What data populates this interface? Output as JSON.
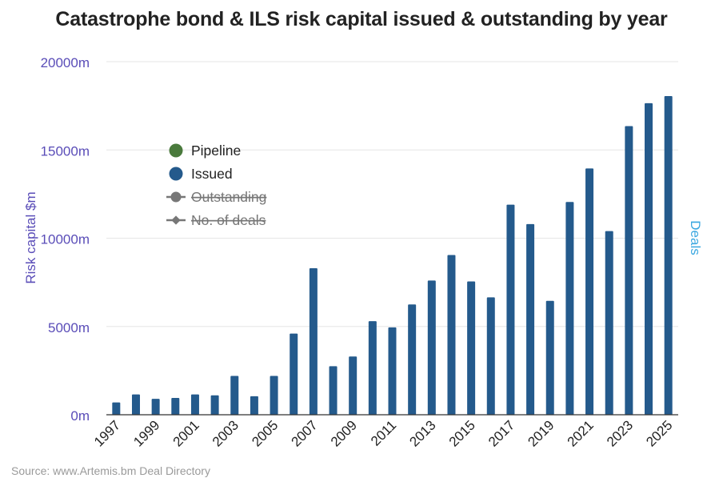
{
  "chart_data": {
    "type": "bar",
    "title": "Catastrophe bond & ILS risk capital issued & outstanding by year",
    "ylabel": "Risk capital $m",
    "y2label": "Deals",
    "ylim": [
      0,
      20000
    ],
    "yticks": [
      "0m",
      "5000m",
      "10000m",
      "15000m",
      "20000m"
    ],
    "ytick_values": [
      0,
      5000,
      10000,
      15000,
      20000
    ],
    "grid": true,
    "categories": [
      "1997",
      "1998",
      "1999",
      "2000",
      "2001",
      "2002",
      "2003",
      "2004",
      "2005",
      "2006",
      "2007",
      "2008",
      "2009",
      "2010",
      "2011",
      "2012",
      "2013",
      "2014",
      "2015",
      "2016",
      "2017",
      "2018",
      "2019",
      "2020",
      "2021",
      "2022",
      "2023",
      "2024",
      "2025"
    ],
    "xtick_labels": [
      "1997",
      "1999",
      "2001",
      "2003",
      "2005",
      "2007",
      "2009",
      "2011",
      "2013",
      "2015",
      "2017",
      "2019",
      "2021",
      "2023",
      "2025"
    ],
    "series": [
      {
        "name": "Issued",
        "color": "#245a8c",
        "values": [
          700,
          1150,
          900,
          950,
          1150,
          1100,
          2200,
          1050,
          2200,
          4600,
          8300,
          2750,
          3300,
          5300,
          4950,
          6250,
          7600,
          9050,
          7550,
          6650,
          11900,
          10800,
          6450,
          12050,
          13950,
          10400,
          16350,
          17650,
          18050
        ]
      }
    ],
    "legend": {
      "placement": "top-left",
      "items": [
        {
          "label": "Pipeline",
          "color": "#4a7a3c",
          "marker": "circle",
          "disabled": false
        },
        {
          "label": "Issued",
          "color": "#245a8c",
          "marker": "circle",
          "disabled": false
        },
        {
          "label": "Outstanding",
          "color": "#777777",
          "marker": "line-circle",
          "disabled": true
        },
        {
          "label": "No. of deals",
          "color": "#777777",
          "marker": "line-diamond",
          "disabled": true
        }
      ]
    }
  },
  "source": "Source: www.Artemis.bm Deal Directory",
  "colors": {
    "y_axis_text": "#5a4db8",
    "y2_axis_text": "#3aa7e0",
    "bar": "#245a8c",
    "grid": "#e6e6e6"
  }
}
